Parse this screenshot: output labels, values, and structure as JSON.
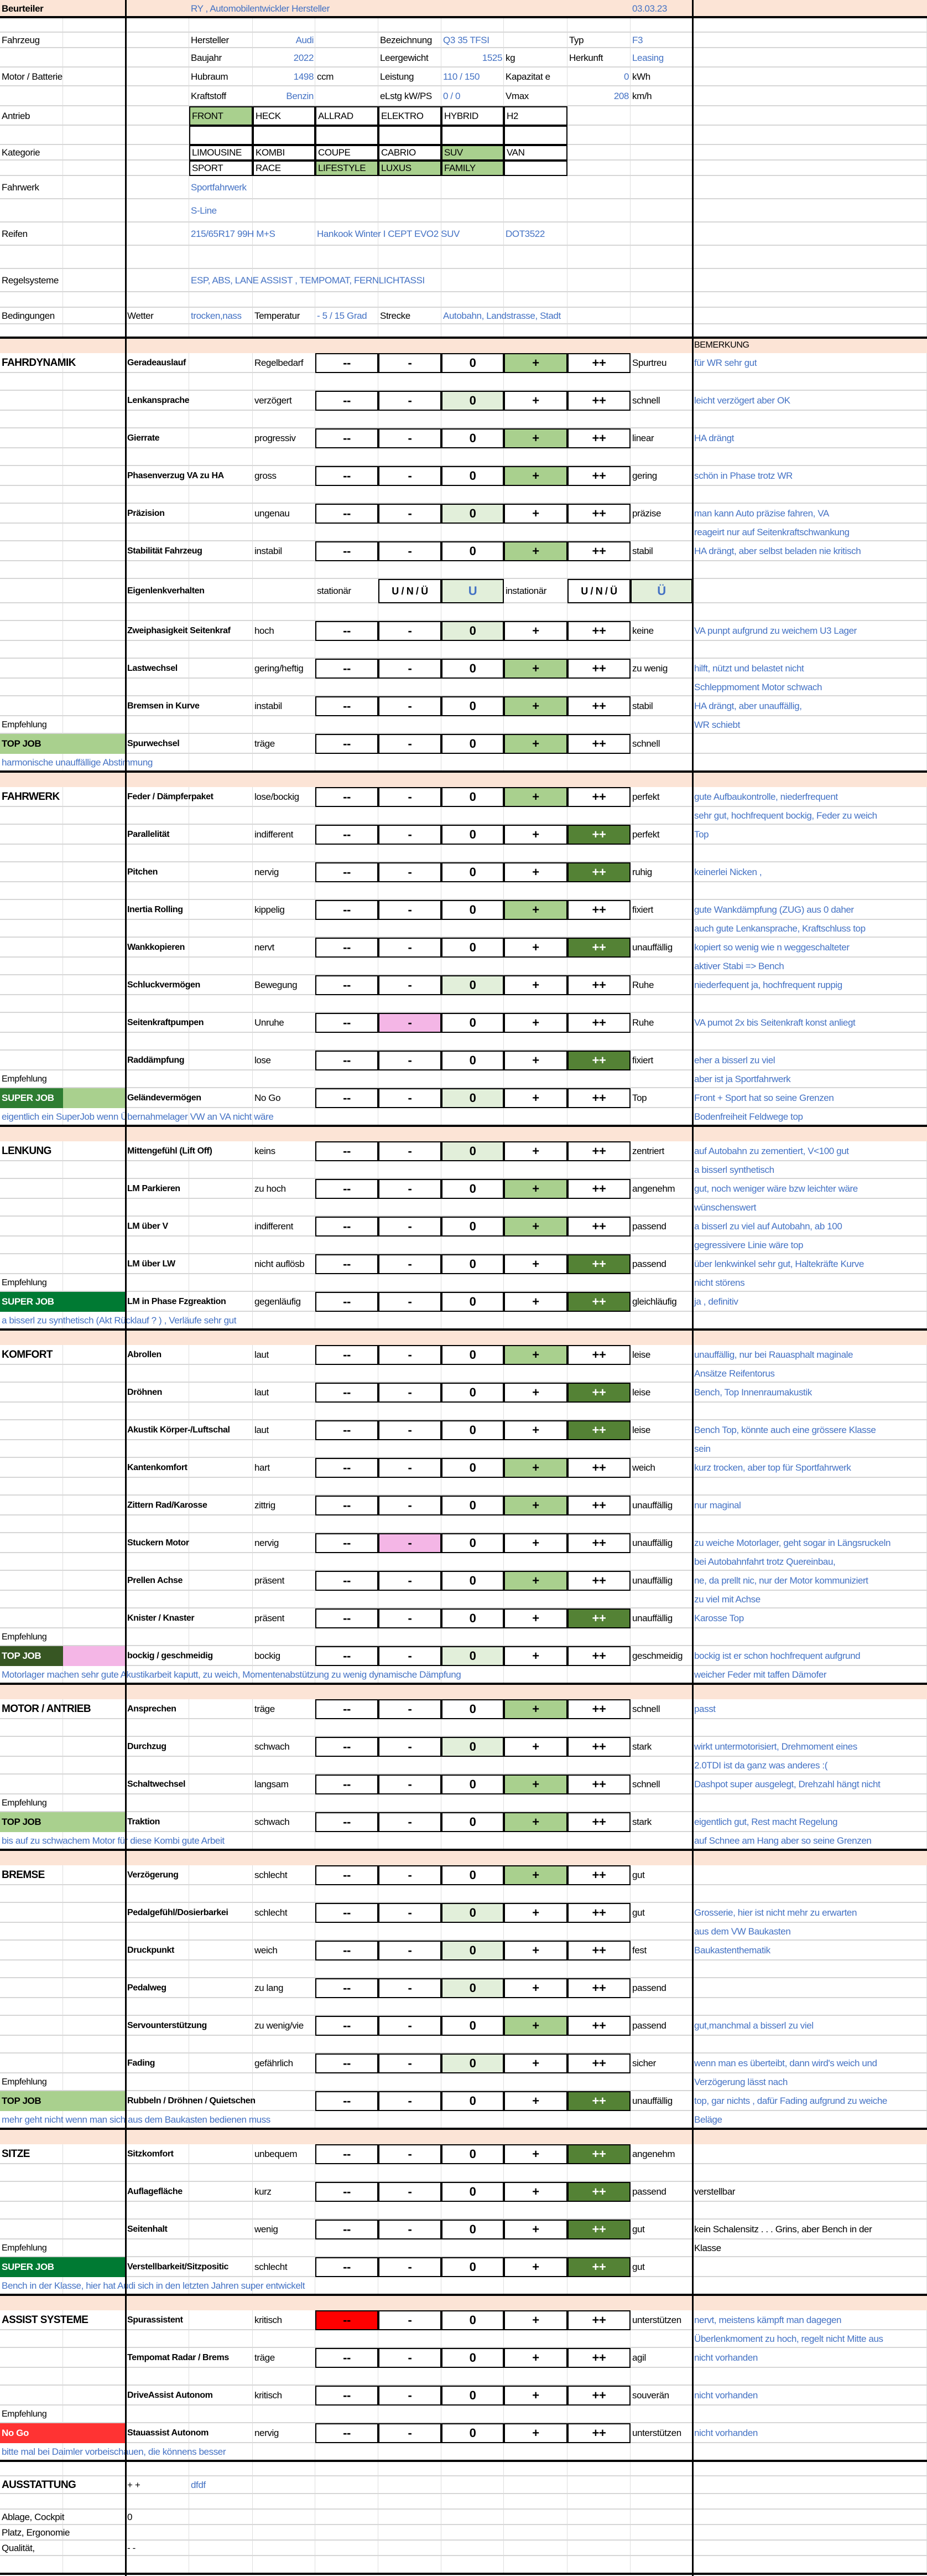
{
  "header": {
    "assessor_label": "Beurteiler",
    "assessor": "RY , Automobilentwickler Hersteller",
    "date": "03.03.23"
  },
  "vehicle": {
    "section_label": "Fahrzeug",
    "manufacturer_label": "Hersteller",
    "manufacturer": "Audi",
    "designation_label": "Bezeichnung",
    "designation": "Q3 35 TFSI",
    "type_label": "Typ",
    "type": "F3",
    "year_label": "Baujahr",
    "year": "2022",
    "weight_label": "Leergewicht",
    "weight": "1525",
    "weight_unit": "kg",
    "origin_label": "Herkunft",
    "origin": "Leasing"
  },
  "engine": {
    "section_label": "Motor / Batterie",
    "displacement_label": "Hubraum",
    "displacement": "1498",
    "displacement_unit": "ccm",
    "power_label": "Leistung",
    "power": "110 /  150",
    "capacity_label": "Kapazitat e",
    "capacity": "0",
    "capacity_unit": "kWh",
    "fuel_label": "Kraftstoff",
    "fuel": "Benzin",
    "epower_label": "eLstg kW/PS",
    "epower": "0 / 0",
    "vmax_label": "Vmax",
    "vmax": "208",
    "vmax_unit": "km/h"
  },
  "drive": {
    "label": "Antrieb",
    "options": [
      {
        "label": "FRONT",
        "selected": true
      },
      {
        "label": "HECK",
        "selected": false
      },
      {
        "label": "ALLRAD",
        "selected": false
      },
      {
        "label": "ELEKTRO",
        "selected": false
      },
      {
        "label": "HYBRID",
        "selected": false
      },
      {
        "label": "H2",
        "selected": false
      }
    ]
  },
  "category": {
    "label": "Kategorie",
    "rows": [
      [
        {
          "label": "LIMOUSINE",
          "selected": false
        },
        {
          "label": "KOMBI",
          "selected": false
        },
        {
          "label": "COUPE",
          "selected": false
        },
        {
          "label": "CABRIO",
          "selected": false
        },
        {
          "label": "SUV",
          "selected": true
        },
        {
          "label": "VAN",
          "selected": false
        }
      ],
      [
        {
          "label": "SPORT",
          "selected": false
        },
        {
          "label": "RACE",
          "selected": false
        },
        {
          "label": "LIFESTYLE",
          "selected": true
        },
        {
          "label": "LUXUS",
          "selected": true
        },
        {
          "label": "FAMILY",
          "selected": true
        },
        {
          "label": "",
          "selected": false
        }
      ]
    ]
  },
  "chassis": {
    "label": "Fahrwerk",
    "value": "Sportfahrwerk",
    "value2": "S-Line"
  },
  "tires": {
    "label": "Reifen",
    "size": "215/65R17 99H M+S",
    "model": "Hankook Winter I CEPT EVO2 SUV",
    "dot": "DOT3522"
  },
  "control_systems": {
    "label": "Regelsysteme",
    "value": "ESP, ABS, LANE ASSIST , TEMPOMAT, FERNLICHTASSI"
  },
  "conditions": {
    "label": "Bedingungen",
    "weather_label": "Wetter",
    "weather": "trocken,nass",
    "temp_label": "Temperatur",
    "temp": "- 5 / 15 Grad",
    "route_label": "Strecke",
    "route": "Autobahn, Landstrasse, Stadt"
  },
  "remark_header": "BEMERKUNG",
  "recommendation_label": "Empfehlung",
  "scale": [
    "--",
    "-",
    "0",
    "+",
    "++"
  ],
  "rating_colors": {
    "--": "#ff0000",
    "-": "#f4b6e6",
    "0": "#e2efda",
    "+": "#a9d08e",
    "++": "#548235"
  },
  "sections": [
    {
      "name": "FAHRDYNAMIK",
      "badge": {
        "label": "TOP JOB",
        "color_a": "#a9d08e",
        "color_b": "#a9d08e",
        "text_color": "#000000"
      },
      "summary": "harmonische unauffällige Abstimmung",
      "criteria": [
        {
          "label": "Geradeauslauf",
          "low": "Regelbedarf",
          "high": "Spurtreu",
          "rating": "+",
          "remark": "für WR sehr gut",
          "remark2": ""
        },
        {
          "label": "Lenkansprache",
          "low": "verzögert",
          "high": "schnell",
          "rating": "0",
          "remark": "leicht verzögert aber OK",
          "remark2": ""
        },
        {
          "label": "Gierrate",
          "low": "progressiv",
          "high": "linear",
          "rating": "+",
          "remark": "HA drängt",
          "remark2": ""
        },
        {
          "label": "Phasenverzug VA zu HA",
          "low": "gross",
          "high": "gering",
          "rating": "+",
          "remark": "schön in Phase trotz WR",
          "remark2": ""
        },
        {
          "label": "Präzision",
          "low": "ungenau",
          "high": "präzise",
          "rating": "0",
          "remark": "man kann Auto präzise fahren, VA",
          "remark2": "reageirt nur auf Seitenkraftschwankung"
        },
        {
          "label": "Stabilität Fahrzeug",
          "low": "instabil",
          "high": "stabil",
          "rating": "+",
          "remark": "HA drängt, aber selbst beladen nie kritisch",
          "remark2": ""
        },
        {
          "label": "Eigenlenkverhalten",
          "special": "self_steer",
          "stationary_label": "stationär",
          "stationary_options": "U / N / Ü",
          "stationary_value": "U",
          "transient_label": "instationär",
          "transient_options": "U / N / Ü",
          "transient_value": "Ü",
          "remark": "",
          "remark2": ""
        },
        {
          "label": "Zweiphasigkeit Seitenkraf",
          "low": "hoch",
          "high": "keine",
          "rating": "0",
          "remark": "VA punpt aufgrund zu weichem U3 Lager",
          "remark2": ""
        },
        {
          "label": "Lastwechsel",
          "low": "gering/heftig",
          "high": "zu wenig",
          "rating": "+",
          "remark": "hilft, nützt und belastet nicht",
          "remark2": "Schleppmoment Motor schwach"
        },
        {
          "label": "Bremsen in Kurve",
          "low": "instabil",
          "high": "stabil",
          "rating": "+",
          "remark": "HA drängt, aber unauffällig,",
          "remark2": "WR schiebt"
        },
        {
          "label": "Spurwechsel",
          "low": "träge",
          "high": "schnell",
          "rating": "+",
          "remark": "",
          "remark2": ""
        }
      ]
    },
    {
      "name": "FAHRWERK",
      "badge": {
        "label": "SUPER JOB",
        "color_a": "#2e7d32",
        "color_b": "#a9d08e",
        "text_color": "#ffffff"
      },
      "summary": "eigentlich ein SuperJob wenn Übernahmelager VW an VA nicht wäre",
      "criteria": [
        {
          "label": "Feder / Dämpferpaket",
          "low": "lose/bockig",
          "high": "perfekt",
          "rating": "+",
          "remark": "gute Aufbaukontrolle, niederfrequent",
          "remark2": "sehr gut, hochfrequent bockig, Feder zu weich"
        },
        {
          "label": "Parallelität",
          "low": "indifferent",
          "high": "perfekt",
          "rating": "++",
          "remark": "Top",
          "remark2": ""
        },
        {
          "label": "Pitchen",
          "low": "nervig",
          "high": "ruhig",
          "rating": "++",
          "remark": "keinerlei Nicken ,",
          "remark2": ""
        },
        {
          "label": "Inertia Rolling",
          "low": "kippelig",
          "high": "fixiert",
          "rating": "+",
          "remark": "gute Wankdämpfung (ZUG) aus 0 daher",
          "remark2": "auch gute Lenkansprache, Kraftschluss top"
        },
        {
          "label": "Wankkopieren",
          "low": "nervt",
          "high": "unauffällig",
          "rating": "++",
          "remark": "kopiert so wenig wie n weggeschalteter",
          "remark2": "aktiver Stabi => Bench"
        },
        {
          "label": "Schluckvermögen",
          "low": "Bewegung",
          "high": "Ruhe",
          "rating": "0",
          "remark": "niederfequent ja, hochfrequent ruppig",
          "remark2": ""
        },
        {
          "label": "Seitenkraftpumpen",
          "low": "Unruhe",
          "high": "Ruhe",
          "rating": "-",
          "remark": "VA pumot 2x bis Seitenkraft konst anliegt",
          "remark2": ""
        },
        {
          "label": "Raddämpfung",
          "low": "lose",
          "high": "fixiert",
          "rating": "++",
          "remark": "eher a bisserl zu viel",
          "remark2": "aber ist ja Sportfahrwerk"
        },
        {
          "label": "Geländevermögen",
          "low": "No Go",
          "high": "Top",
          "rating": "0",
          "remark": "Front + Sport hat so seine Grenzen",
          "remark2": "Bodenfreiheit Feldwege top"
        }
      ]
    },
    {
      "name": "LENKUNG",
      "badge": {
        "label": "SUPER JOB",
        "color_a": "#007a33",
        "color_b": "#007a33",
        "text_color": "#ffffff"
      },
      "summary": "a bisserl zu synthetisch (Akt Rücklauf ? ) , Verläufe sehr gut",
      "criteria": [
        {
          "label": "Mittengefühl (Lift Off)",
          "low": "keins",
          "high": "zentriert",
          "rating": "0",
          "remark": "auf Autobahn zu zementiert, V<100 gut",
          "remark2": "a bisserl synthetisch"
        },
        {
          "label": "LM Parkieren",
          "low": "zu hoch",
          "high": "angenehm",
          "rating": "+",
          "remark": "gut, noch weniger wäre bzw leichter wäre",
          "remark2": "wünschenswert"
        },
        {
          "label": "LM über V",
          "low": "indifferent",
          "high": "passend",
          "rating": "+",
          "remark": "a bisserl zu viel auf Autobahn, ab 100",
          "remark2": "gegressivere Linie wäre top"
        },
        {
          "label": "LM über LW",
          "low": "nicht auflösb",
          "high": "passend",
          "rating": "++",
          "remark": "über lenkwinkel sehr gut, Haltekräfte Kurve",
          "remark2": "nicht störens"
        },
        {
          "label": "LM in Phase Fzgreaktion",
          "low": "gegenläufig",
          "high": "gleichläufig",
          "rating": "++",
          "remark": "ja , definitiv",
          "remark2": ""
        }
      ]
    },
    {
      "name": "KOMFORT",
      "badge": {
        "label": "TOP JOB",
        "color_a": "#375623",
        "color_b": "#f4b6e6",
        "text_color": "#ffffff"
      },
      "summary": "Motorlager machen sehr gute Akustikarbeit kaputt,  zu weich, Momentenabstützung zu wenig dynamische Dämpfung",
      "criteria": [
        {
          "label": "Abrollen",
          "low": "laut",
          "high": "leise",
          "rating": "+",
          "remark": "unauffällig, nur bei Rauasphalt maginale",
          "remark2": "Ansätze Reifentorus"
        },
        {
          "label": "Dröhnen",
          "low": "laut",
          "high": "leise",
          "rating": "++",
          "remark": "Bench, Top Innenraumakustik",
          "remark2": ""
        },
        {
          "label": "Akustik Körper-/Luftschal",
          "low": "laut",
          "high": "leise",
          "rating": "++",
          "remark": "Bench Top, könnte auch eine grössere Klasse",
          "remark2": "sein"
        },
        {
          "label": "Kantenkomfort",
          "low": "hart",
          "high": "weich",
          "rating": "+",
          "remark": "kurz trocken, aber top für Sportfahrwerk",
          "remark2": ""
        },
        {
          "label": "Zittern Rad/Karosse",
          "low": "zittrig",
          "high": "unauffällig",
          "rating": "+",
          "remark": "nur maginal",
          "remark2": ""
        },
        {
          "label": "Stuckern Motor",
          "low": "nervig",
          "high": "unauffällig",
          "rating": "-",
          "remark": "zu weiche Motorlager, geht sogar in Längsruckeln",
          "remark2": "bei Autobahnfahrt  trotz Quereinbau,"
        },
        {
          "label": "Prellen Achse",
          "low": "präsent",
          "high": "unauffällig",
          "rating": "+",
          "remark": "ne, da prellt nic, nur der Motor kommuniziert",
          "remark2": "zu viel mit Achse"
        },
        {
          "label": "Knister / Knaster",
          "low": "präsent",
          "high": "unauffällig",
          "rating": "++",
          "remark": "Karosse Top",
          "remark2": ""
        },
        {
          "label": "bockig / geschmeidig",
          "low": "bockig",
          "high": "geschmeidig",
          "rating": "0",
          "remark": "bockig ist er schon hochfrequent aufgrund",
          "remark2": "weicher Feder mit taffen Dämofer"
        }
      ]
    },
    {
      "name": "MOTOR / ANTRIEB",
      "badge": {
        "label": "TOP JOB",
        "color_a": "#a9d08e",
        "color_b": "#a9d08e",
        "text_color": "#000000"
      },
      "summary": "bis auf zu schwachem Motor für diese Kombi gute Arbeit",
      "criteria": [
        {
          "label": "Ansprechen",
          "low": "träge",
          "high": "schnell",
          "rating": "+",
          "remark": "passt",
          "remark2": ""
        },
        {
          "label": "Durchzug",
          "low": "schwach",
          "high": "stark",
          "rating": "0",
          "remark": "wirkt untermotorisiert, Drehmoment eines",
          "remark2": "2.0TDI ist da ganz was anderes :("
        },
        {
          "label": "Schaltwechsel",
          "low": "langsam",
          "high": "schnell",
          "rating": "+",
          "remark": "Dashpot super ausgelegt, Drehzahl hängt nicht",
          "remark2": ""
        },
        {
          "label": "Traktion",
          "low": "schwach",
          "high": "stark",
          "rating": "+",
          "remark": "eigentlich gut, Rest macht Regelung",
          "remark2": "auf Schnee am Hang aber so seine Grenzen"
        }
      ]
    },
    {
      "name": "BREMSE",
      "badge": {
        "label": "TOP JOB",
        "color_a": "#a9d08e",
        "color_b": "#a9d08e",
        "text_color": "#000000"
      },
      "summary": "mehr geht nicht wenn man sich aus dem Baukasten bedienen muss",
      "criteria": [
        {
          "label": "Verzögerung",
          "low": "schlecht",
          "high": "gut",
          "rating": "+",
          "remark": "",
          "remark2": ""
        },
        {
          "label": "Pedalgefühl/Dosierbarkei",
          "low": "schlecht",
          "high": "gut",
          "rating": "0",
          "remark": "Grosserie, hier ist nicht mehr zu erwarten",
          "remark2": "aus dem VW Baukasten"
        },
        {
          "label": "Druckpunkt",
          "low": "weich",
          "high": "fest",
          "rating": "0",
          "remark": "Baukastenthematik",
          "remark2": ""
        },
        {
          "label": "Pedalweg",
          "low": "zu lang",
          "high": "passend",
          "rating": "0",
          "remark": "",
          "remark2": ""
        },
        {
          "label": "Servounterstützung",
          "low": "zu wenig/vie",
          "high": "passend",
          "rating": "+",
          "remark": "gut,manchmal a bisserl zu viel",
          "remark2": ""
        },
        {
          "label": "Fading",
          "low": "gefährlich",
          "high": "sicher",
          "rating": "0",
          "remark": "wenn man es überteibt, dann wird's weich und",
          "remark2": "Verzögerung lässt nach"
        },
        {
          "label": "Rubbeln / Dröhnen / Quietschen",
          "low": "",
          "high": "unauffällig",
          "rating": "++",
          "remark": "top, gar nichts , dafür Fading aufgrund zu weiche",
          "remark2": "Beläge"
        }
      ]
    },
    {
      "name": "SITZE",
      "badge": {
        "label": "SUPER JOB",
        "color_a": "#007a33",
        "color_b": "#007a33",
        "text_color": "#ffffff"
      },
      "summary": "Bench in der Klasse, hier hat Audi sich in den letzten Jahren super entwickelt",
      "criteria": [
        {
          "label": "Sitzkomfort",
          "low": "unbequem",
          "high": "angenehm",
          "rating": "++",
          "remark": "",
          "remark2": ""
        },
        {
          "label": "Auflagefläche",
          "low": "kurz",
          "high": "passend",
          "rating": "++",
          "remark": "verstellbar",
          "remark2": "",
          "remark_color": "#000000"
        },
        {
          "label": "Seitenhalt",
          "low": "wenig",
          "high": "gut",
          "rating": "++",
          "remark": "kein Schalensitz . . . Grins, aber Bench in der",
          "remark2": "Klasse",
          "remark_color": "#000000"
        },
        {
          "label": "Verstellbarkeit/Sitzpositic",
          "low": "schlecht",
          "high": "gut",
          "rating": "++",
          "remark": "",
          "remark2": ""
        }
      ]
    },
    {
      "name": "ASSIST SYSTEME",
      "badge": {
        "label": "No Go",
        "color_a": "#ff3333",
        "color_b": "#ff3333",
        "text_color": "#ffffff"
      },
      "summary": "bitte mal bei Daimler vorbeischauen, die könnens besser",
      "criteria": [
        {
          "label": "Spurassistent",
          "low": "kritisch",
          "high": "unterstützen",
          "rating": "--",
          "remark": "nervt, meistens kämpft man dagegen",
          "remark2": "Überlenkmoment zu hoch, regelt nicht Mitte aus"
        },
        {
          "label": "Tempomat Radar / Brems",
          "low": "träge",
          "high": "agil",
          "rating": null,
          "remark": "nicht vorhanden",
          "remark2": ""
        },
        {
          "label": "DriveAssist Autonom",
          "low": "kritisch",
          "high": "souverän",
          "rating": null,
          "remark": "nicht vorhanden",
          "remark2": ""
        },
        {
          "label": "Stauassist Autonom",
          "low": "nervig",
          "high": "unterstützen",
          "rating": null,
          "remark": "nicht vorhanden",
          "remark2": ""
        }
      ]
    }
  ],
  "equipment": {
    "label": "AUSSTATTUNG",
    "rating": "+ +",
    "note": "dfdf",
    "items": [
      {
        "label": "Ablage, Cockpit",
        "value": "0"
      },
      {
        "label": "Platz, Ergonomie",
        "value": ""
      },
      {
        "label": "Qualität,",
        "value": "- -"
      }
    ]
  }
}
